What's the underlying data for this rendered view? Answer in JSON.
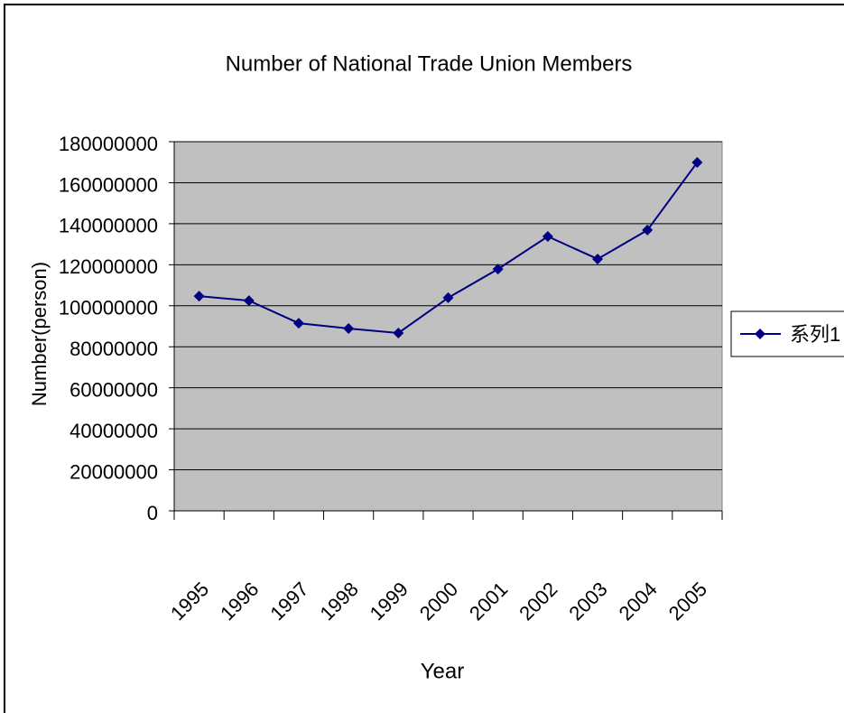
{
  "chart_data": {
    "type": "line",
    "title": "Number of National Trade Union Members",
    "x_label": "Year",
    "y_label": "Number(person)",
    "categories": [
      "1995",
      "1996",
      "1997",
      "1998",
      "1999",
      "2000",
      "2001",
      "2002",
      "2003",
      "2004",
      "2005"
    ],
    "series": [
      {
        "name": "系列1",
        "color": "#000080",
        "values": [
          104700000,
          102500000,
          91500000,
          88900000,
          86700000,
          103900000,
          117900000,
          133800000,
          122800000,
          136900000,
          169900000
        ]
      }
    ],
    "ylim": [
      0,
      180000000
    ],
    "yticks": [
      0,
      20000000,
      40000000,
      60000000,
      80000000,
      100000000,
      120000000,
      140000000,
      160000000,
      180000000
    ],
    "grid": true,
    "plot_background": "#c0c0c0",
    "legend": "right"
  }
}
